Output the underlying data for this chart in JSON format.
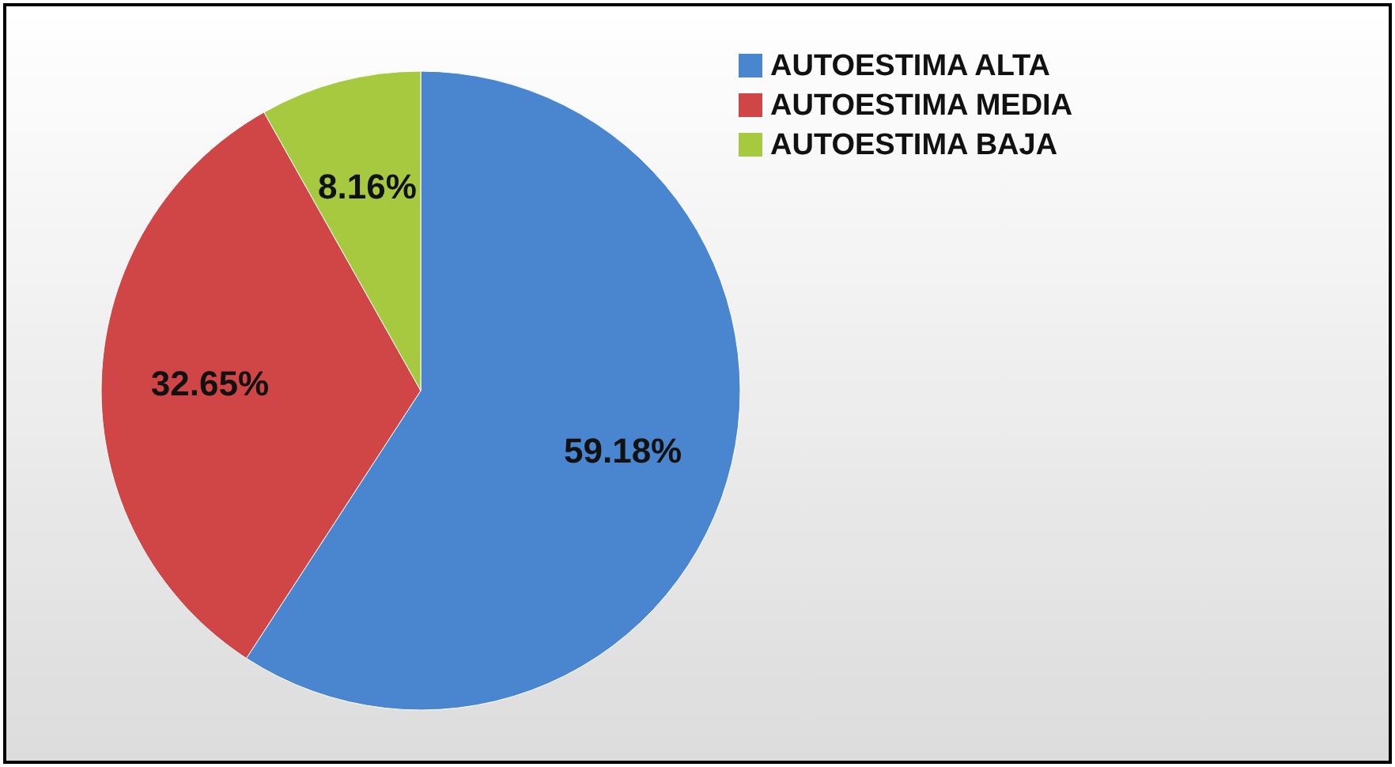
{
  "chart_data": {
    "type": "pie",
    "categories": [
      "AUTOESTIMA ALTA",
      "AUTOESTIMA MEDIA",
      "AUTOESTIMA BAJA"
    ],
    "values": [
      59.18,
      32.65,
      8.16
    ],
    "colors": [
      "#4a86d0",
      "#d04545",
      "#a6c940"
    ],
    "value_labels": [
      "59.18%",
      "32.65%",
      "8.16%"
    ],
    "legend": "top right"
  }
}
